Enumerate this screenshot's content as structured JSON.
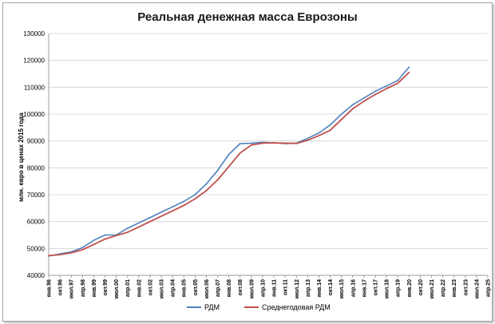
{
  "chart_data": {
    "type": "line",
    "title": "Реальная денежная масса Еврозоны",
    "xlabel": "",
    "ylabel": "млн. евро в ценах 2015 года",
    "ylim": [
      40000,
      130000
    ],
    "yticks": [
      "40000",
      "50000",
      "60000",
      "70000",
      "80000",
      "90000",
      "100000",
      "110000",
      "120000",
      "130000"
    ],
    "xticks": [
      "янв.96",
      "окт.96",
      "июл.97",
      "апр.98",
      "янв.99",
      "окт.99",
      "июл.00",
      "апр.01",
      "янв.02",
      "окт.02",
      "июл.03",
      "апр.04",
      "янв.05",
      "окт.05",
      "июл.06",
      "апр.07",
      "янв.08",
      "окт.08",
      "июл.09",
      "апр.10",
      "янв.11",
      "окт.11",
      "июл.12",
      "апр.13",
      "янв.14",
      "окт.14",
      "июл.15",
      "апр.16",
      "янв.17",
      "окт.17",
      "июл.18",
      "апр.19",
      "янв.20",
      "окт.20",
      "июл.21",
      "апр.22",
      "янв.23",
      "окт.23",
      "июл.24",
      "апр.25"
    ],
    "x_months_from": "янв.96",
    "grid": true,
    "legend_position": "bottom",
    "series": [
      {
        "name": "РДМ",
        "color": "#4f81bd",
        "x": [
          "янв.96",
          "окт.96",
          "июл.97",
          "апр.98",
          "янв.99",
          "окт.99",
          "июл.00",
          "апр.01",
          "янв.02",
          "окт.02",
          "июл.03",
          "апр.04",
          "янв.05",
          "окт.05",
          "июл.06",
          "апр.07",
          "янв.08",
          "окт.08",
          "июл.09",
          "апр.10",
          "янв.11",
          "окт.11",
          "июл.12",
          "апр.13",
          "янв.14",
          "окт.14",
          "июл.15",
          "апр.16",
          "янв.17",
          "окт.17",
          "июл.18",
          "апр.19",
          "янв.20"
        ],
        "values": [
          47200,
          48000,
          48700,
          50300,
          53000,
          55000,
          55000,
          57500,
          59500,
          61500,
          63500,
          65500,
          67500,
          70000,
          74000,
          79000,
          85000,
          89000,
          89200,
          89500,
          89300,
          89000,
          89200,
          91000,
          93000,
          96000,
          100000,
          103500,
          106000,
          108500,
          110500,
          112500,
          117500
        ]
      },
      {
        "name": "Среднегодовая РДМ",
        "color": "#c0504d",
        "x": [
          "янв.96",
          "окт.96",
          "июл.97",
          "апр.98",
          "янв.99",
          "окт.99",
          "июл.00",
          "апр.01",
          "янв.02",
          "окт.02",
          "июл.03",
          "апр.04",
          "янв.05",
          "окт.05",
          "июл.06",
          "апр.07",
          "янв.08",
          "окт.08",
          "июл.09",
          "апр.10",
          "янв.11",
          "окт.11",
          "июл.12",
          "апр.13",
          "янв.14",
          "окт.14",
          "июл.15",
          "апр.16",
          "янв.17",
          "окт.17",
          "июл.18",
          "апр.19",
          "янв.20"
        ],
        "values": [
          47300,
          47700,
          48400,
          49500,
          51500,
          53500,
          54800,
          56000,
          58000,
          60000,
          62000,
          64000,
          66000,
          68500,
          71500,
          75500,
          80500,
          85500,
          88500,
          89200,
          89300,
          89200,
          89100,
          90300,
          92000,
          94000,
          98000,
          102000,
          104800,
          107300,
          109500,
          111500,
          115500
        ]
      }
    ]
  }
}
